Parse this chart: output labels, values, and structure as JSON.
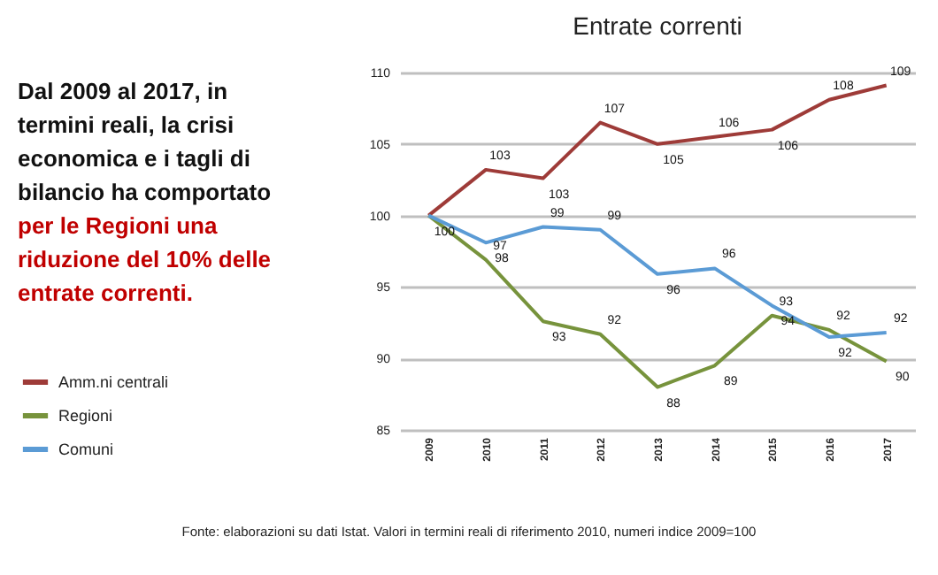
{
  "chart_data": {
    "type": "line",
    "title": "Entrate correnti",
    "categories": [
      "2009",
      "2010",
      "2011",
      "2012",
      "2013",
      "2014",
      "2015",
      "2016",
      "2017"
    ],
    "series": [
      {
        "name": "Amm.ni centrali",
        "color": "#9e3b38",
        "values": [
          100,
          103.2,
          102.6,
          106.5,
          105.0,
          105.5,
          106.0,
          108.1,
          109.1
        ],
        "value_labels": [
          "100",
          "103",
          "103",
          "107",
          "105",
          "106",
          "106",
          "108",
          "109"
        ]
      },
      {
        "name": "Regioni",
        "color": "#77933c",
        "values": [
          100,
          96.9,
          92.6,
          91.7,
          88.0,
          89.5,
          93.0,
          92.0,
          89.8
        ],
        "value_labels": [
          null,
          "97",
          "93",
          "92",
          "88",
          "89",
          "93",
          "92",
          "90"
        ]
      },
      {
        "name": "Comuni",
        "color": "#5b9bd5",
        "values": [
          100,
          98.1,
          99.2,
          99.0,
          95.9,
          96.3,
          93.7,
          91.5,
          91.8
        ],
        "value_labels": [
          null,
          "98",
          "99",
          "99",
          "96",
          "96",
          "94",
          "92",
          "92"
        ]
      }
    ],
    "ylim": [
      85,
      110
    ],
    "yticks": [
      85,
      90,
      95,
      100,
      105,
      110
    ],
    "grid": "y",
    "legend": "left",
    "annotations": [
      "Dal 2009 al 2017, in termini reali, la crisi economica e i tagli di bilancio ha comportato",
      "per le Regioni una riduzione del 10% delle entrate correnti.",
      "Fonte: elaborazioni su dati Istat. Valori in termini reali di riferimento 2010, numeri indice 2009=100"
    ]
  }
}
